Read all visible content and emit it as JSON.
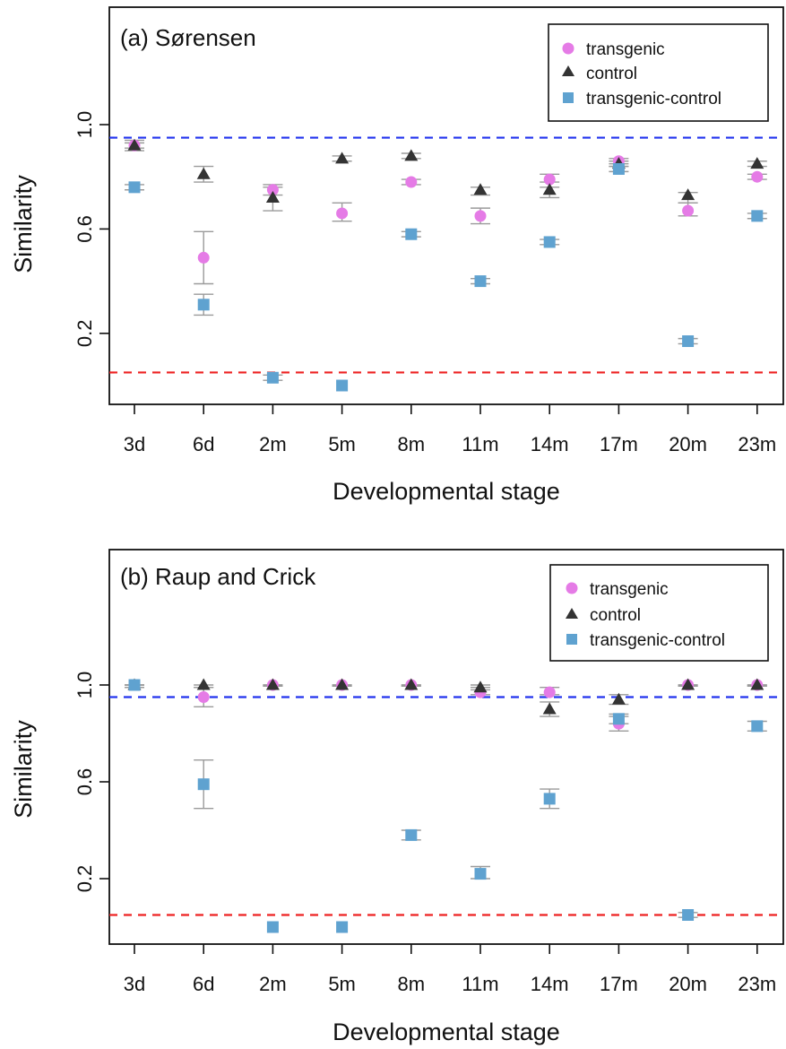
{
  "chart_data": [
    {
      "type": "scatter",
      "title": "(a) Sørensen",
      "xlabel": "Developmental stage",
      "ylabel": "Similarity",
      "categories": [
        "3d",
        "6d",
        "2m",
        "5m",
        "8m",
        "11m",
        "14m",
        "17m",
        "20m",
        "23m"
      ],
      "yticks": [
        "0.2",
        "0.6",
        "1.0"
      ],
      "ylim": [
        0.0,
        1.4
      ],
      "grid": false,
      "legend_position": "top-right",
      "reference_lines": [
        {
          "y": 0.95,
          "color": "#2233ee"
        },
        {
          "y": 0.05,
          "color": "#ee2222"
        }
      ],
      "series": [
        {
          "name": "transgenic",
          "marker": "circle",
          "color": "#e57be6",
          "values": [
            0.92,
            0.49,
            0.75,
            0.66,
            0.78,
            0.65,
            0.79,
            0.86,
            0.67,
            0.8
          ],
          "err_low": [
            0.91,
            0.39,
            0.73,
            0.63,
            0.77,
            0.62,
            0.76,
            0.85,
            0.65,
            0.79
          ],
          "err_high": [
            0.93,
            0.59,
            0.77,
            0.7,
            0.79,
            0.68,
            0.81,
            0.87,
            0.7,
            0.81
          ]
        },
        {
          "name": "control",
          "marker": "triangle",
          "color": "#333333",
          "values": [
            0.92,
            0.81,
            0.72,
            0.87,
            0.88,
            0.75,
            0.75,
            0.85,
            0.73,
            0.85
          ],
          "err_low": [
            0.9,
            0.78,
            0.67,
            0.86,
            0.87,
            0.73,
            0.72,
            0.84,
            0.7,
            0.84
          ],
          "err_high": [
            0.94,
            0.84,
            0.76,
            0.88,
            0.89,
            0.76,
            0.78,
            0.86,
            0.74,
            0.86
          ]
        },
        {
          "name": "transgenic-control",
          "marker": "square",
          "color": "#5fa2d0",
          "values": [
            0.76,
            0.31,
            0.03,
            0.0,
            0.58,
            0.4,
            0.55,
            0.83,
            0.17,
            0.65
          ],
          "err_low": [
            0.75,
            0.27,
            0.02,
            0.0,
            0.57,
            0.39,
            0.54,
            0.82,
            0.16,
            0.64
          ],
          "err_high": [
            0.77,
            0.35,
            0.04,
            0.0,
            0.59,
            0.41,
            0.56,
            0.84,
            0.18,
            0.66
          ]
        }
      ]
    },
    {
      "type": "scatter",
      "title": "(b) Raup and Crick",
      "xlabel": "Developmental stage",
      "ylabel": "Similarity",
      "categories": [
        "3d",
        "6d",
        "2m",
        "5m",
        "8m",
        "11m",
        "14m",
        "17m",
        "20m",
        "23m"
      ],
      "yticks": [
        "0.2",
        "0.6",
        "1.0"
      ],
      "ylim": [
        0.0,
        1.4
      ],
      "grid": false,
      "legend_position": "top-right",
      "reference_lines": [
        {
          "y": 0.95,
          "color": "#2233ee"
        },
        {
          "y": 0.05,
          "color": "#ee2222"
        }
      ],
      "series": [
        {
          "name": "transgenic",
          "marker": "circle",
          "color": "#e57be6",
          "values": [
            1.0,
            0.95,
            1.0,
            1.0,
            1.0,
            0.97,
            0.97,
            0.84,
            1.0,
            1.0
          ],
          "err_low": [
            0.99,
            0.91,
            0.995,
            0.995,
            0.995,
            0.96,
            0.96,
            0.81,
            0.995,
            0.995
          ],
          "err_high": [
            1.0,
            0.99,
            1.0,
            1.0,
            1.0,
            0.99,
            0.99,
            0.87,
            1.0,
            1.0
          ]
        },
        {
          "name": "control",
          "marker": "triangle",
          "color": "#333333",
          "values": [
            1.0,
            1.0,
            1.0,
            1.0,
            1.0,
            0.99,
            0.9,
            0.94,
            1.0,
            1.0
          ],
          "err_low": [
            0.99,
            0.99,
            0.995,
            0.995,
            0.995,
            0.98,
            0.87,
            0.92,
            0.995,
            0.995
          ],
          "err_high": [
            1.0,
            1.0,
            1.0,
            1.0,
            1.0,
            1.0,
            0.93,
            0.96,
            1.0,
            1.0
          ]
        },
        {
          "name": "transgenic-control",
          "marker": "square",
          "color": "#5fa2d0",
          "values": [
            1.0,
            0.59,
            0.0,
            0.0,
            0.38,
            0.22,
            0.53,
            0.86,
            0.05,
            0.83
          ],
          "err_low": [
            0.99,
            0.49,
            0.0,
            0.0,
            0.36,
            0.2,
            0.49,
            0.84,
            0.04,
            0.81
          ],
          "err_high": [
            1.0,
            0.69,
            0.0,
            0.0,
            0.4,
            0.25,
            0.57,
            0.88,
            0.06,
            0.85
          ]
        }
      ]
    }
  ]
}
